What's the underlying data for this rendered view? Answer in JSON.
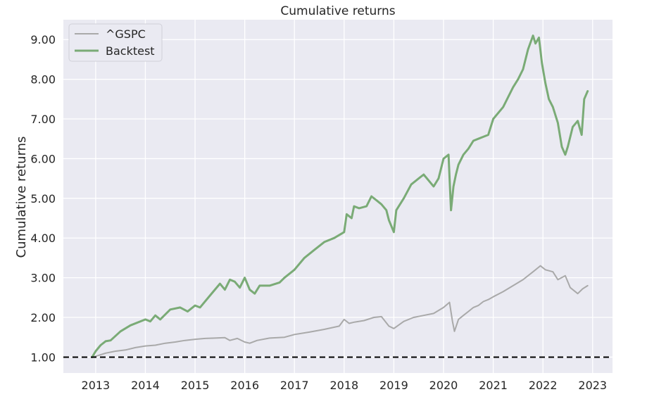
{
  "chart_data": {
    "type": "line",
    "title": "Cumulative returns",
    "xlabel": "",
    "ylabel": "Cumulative returns",
    "xlim": [
      2012.35,
      2023.4
    ],
    "ylim": [
      0.6,
      9.5
    ],
    "x_ticks": [
      2013,
      2014,
      2015,
      2016,
      2017,
      2018,
      2019,
      2020,
      2021,
      2022,
      2023
    ],
    "x_tick_labels": [
      "2013",
      "2014",
      "2015",
      "2016",
      "2017",
      "2018",
      "2019",
      "2020",
      "2021",
      "2022",
      "2023"
    ],
    "y_ticks": [
      1,
      2,
      3,
      4,
      5,
      6,
      7,
      8,
      9
    ],
    "y_tick_labels": [
      "1.00",
      "2.00",
      "3.00",
      "4.00",
      "5.00",
      "6.00",
      "7.00",
      "8.00",
      "9.00"
    ],
    "grid": true,
    "legend_position": "top-left",
    "reference_line": {
      "y": 1.0,
      "style": "dashed",
      "color": "#000000"
    },
    "series": [
      {
        "name": "^GSPC",
        "color": "#a9a9a9",
        "x": [
          2012.93,
          2013.0,
          2013.2,
          2013.4,
          2013.6,
          2013.8,
          2014.0,
          2014.2,
          2014.4,
          2014.6,
          2014.8,
          2015.0,
          2015.2,
          2015.4,
          2015.6,
          2015.7,
          2015.85,
          2016.0,
          2016.1,
          2016.25,
          2016.5,
          2016.8,
          2017.0,
          2017.3,
          2017.6,
          2017.9,
          2018.0,
          2018.1,
          2018.2,
          2018.4,
          2018.6,
          2018.75,
          2018.9,
          2019.0,
          2019.2,
          2019.4,
          2019.6,
          2019.8,
          2020.0,
          2020.12,
          2020.18,
          2020.22,
          2020.3,
          2020.4,
          2020.5,
          2020.6,
          2020.7,
          2020.8,
          2020.9,
          2021.0,
          2021.2,
          2021.4,
          2021.6,
          2021.8,
          2021.95,
          2022.05,
          2022.2,
          2022.3,
          2022.45,
          2022.55,
          2022.7,
          2022.8,
          2022.9
        ],
        "values": [
          1.0,
          1.02,
          1.1,
          1.15,
          1.18,
          1.24,
          1.28,
          1.3,
          1.35,
          1.38,
          1.42,
          1.45,
          1.47,
          1.48,
          1.49,
          1.42,
          1.47,
          1.38,
          1.35,
          1.42,
          1.48,
          1.5,
          1.57,
          1.63,
          1.7,
          1.78,
          1.95,
          1.85,
          1.88,
          1.92,
          2.0,
          2.02,
          1.78,
          1.72,
          1.9,
          2.0,
          2.05,
          2.1,
          2.25,
          2.38,
          1.9,
          1.65,
          1.95,
          2.05,
          2.15,
          2.25,
          2.3,
          2.4,
          2.45,
          2.52,
          2.65,
          2.8,
          2.95,
          3.15,
          3.3,
          3.2,
          3.15,
          2.95,
          3.05,
          2.75,
          2.6,
          2.72,
          2.8
        ]
      },
      {
        "name": "Backtest",
        "color": "#7aab76",
        "x": [
          2012.93,
          2013.0,
          2013.1,
          2013.2,
          2013.3,
          2013.5,
          2013.7,
          2014.0,
          2014.1,
          2014.2,
          2014.3,
          2014.5,
          2014.7,
          2014.85,
          2015.0,
          2015.1,
          2015.3,
          2015.5,
          2015.6,
          2015.7,
          2015.8,
          2015.9,
          2016.0,
          2016.1,
          2016.2,
          2016.3,
          2016.5,
          2016.7,
          2016.8,
          2017.0,
          2017.2,
          2017.4,
          2017.6,
          2017.8,
          2018.0,
          2018.05,
          2018.15,
          2018.2,
          2018.3,
          2018.45,
          2018.55,
          2018.65,
          2018.75,
          2018.85,
          2018.9,
          2019.0,
          2019.05,
          2019.2,
          2019.35,
          2019.5,
          2019.6,
          2019.8,
          2019.9,
          2020.0,
          2020.1,
          2020.15,
          2020.2,
          2020.25,
          2020.3,
          2020.4,
          2020.5,
          2020.6,
          2020.7,
          2020.8,
          2020.9,
          2021.0,
          2021.2,
          2021.4,
          2021.5,
          2021.6,
          2021.7,
          2021.8,
          2021.85,
          2021.92,
          2021.98,
          2022.05,
          2022.12,
          2022.2,
          2022.3,
          2022.38,
          2022.45,
          2022.5,
          2022.6,
          2022.7,
          2022.78,
          2022.83,
          2022.9
        ],
        "values": [
          1.0,
          1.15,
          1.3,
          1.4,
          1.42,
          1.65,
          1.8,
          1.95,
          1.9,
          2.05,
          1.95,
          2.2,
          2.25,
          2.15,
          2.3,
          2.25,
          2.55,
          2.85,
          2.7,
          2.95,
          2.9,
          2.75,
          3.0,
          2.7,
          2.6,
          2.8,
          2.8,
          2.88,
          3.0,
          3.2,
          3.5,
          3.7,
          3.9,
          4.0,
          4.15,
          4.6,
          4.5,
          4.8,
          4.75,
          4.8,
          5.05,
          4.95,
          4.85,
          4.7,
          4.45,
          4.15,
          4.7,
          5.0,
          5.35,
          5.5,
          5.6,
          5.3,
          5.5,
          6.0,
          6.1,
          4.7,
          5.3,
          5.6,
          5.85,
          6.1,
          6.25,
          6.45,
          6.5,
          6.55,
          6.6,
          7.0,
          7.3,
          7.8,
          8.0,
          8.25,
          8.75,
          9.1,
          8.9,
          9.05,
          8.4,
          7.9,
          7.5,
          7.3,
          6.9,
          6.3,
          6.1,
          6.3,
          6.8,
          6.95,
          6.6,
          7.5,
          7.7
        ]
      }
    ]
  }
}
